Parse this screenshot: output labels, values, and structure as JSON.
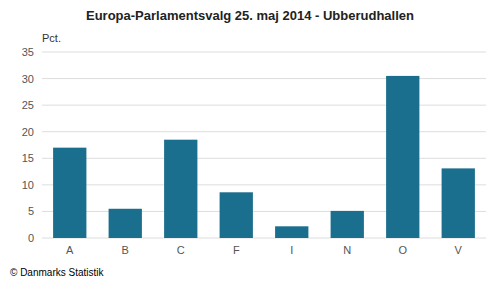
{
  "chart_data": {
    "type": "bar",
    "title": "Europa-Parlamentsvalg 25. maj 2014 - Ubberudhallen",
    "ylabel": "Pct.",
    "annotations": [
      "© Danmarks Statistik"
    ],
    "categories": [
      "A",
      "B",
      "C",
      "F",
      "I",
      "N",
      "O",
      "V"
    ],
    "values": [
      17.0,
      5.5,
      18.5,
      8.6,
      2.2,
      5.1,
      30.5,
      13.1
    ],
    "color": "#1a6e8e",
    "ylim": [
      0,
      35
    ],
    "yticks": [
      0,
      5,
      10,
      15,
      20,
      25,
      30,
      35
    ],
    "grid": true
  }
}
